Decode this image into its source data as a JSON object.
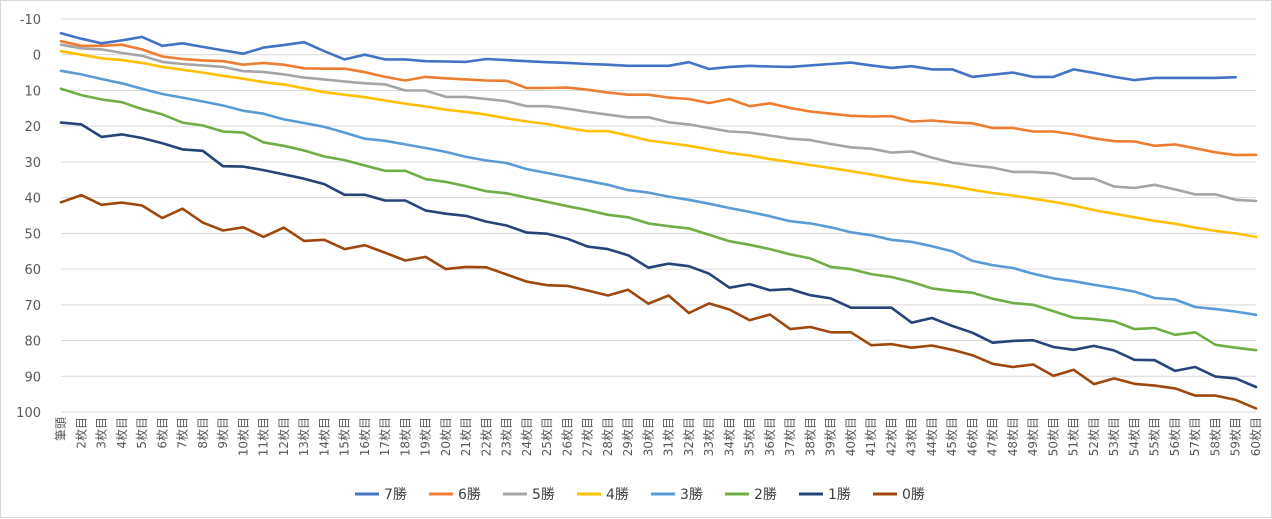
{
  "chart_data": {
    "type": "line",
    "title": "",
    "xlabel": "",
    "ylabel": "",
    "ylim": [
      -10,
      100
    ],
    "y_inverted": true,
    "yticks": [
      "-10",
      "0",
      "10",
      "20",
      "30",
      "40",
      "50",
      "60",
      "70",
      "80",
      "90",
      "100"
    ],
    "grid": "horizontal",
    "legend_position": "bottom",
    "categories": [
      "筆頭",
      "2枚目",
      "3枚目",
      "4枚目",
      "5枚目",
      "6枚目",
      "7枚目",
      "8枚目",
      "9枚目",
      "10枚目",
      "11枚目",
      "12枚目",
      "13枚目",
      "14枚目",
      "15枚目",
      "16枚目",
      "17枚目",
      "18枚目",
      "19枚目",
      "20枚目",
      "21枚目",
      "22枚目",
      "23枚目",
      "24枚目",
      "25枚目",
      "26枚目",
      "27枚目",
      "28枚目",
      "29枚目",
      "30枚目",
      "31枚目",
      "32枚目",
      "33枚目",
      "34枚目",
      "35枚目",
      "36枚目",
      "37枚目",
      "38枚目",
      "39枚目",
      "40枚目",
      "41枚目",
      "42枚目",
      "43枚目",
      "44枚目",
      "45枚目",
      "46枚目",
      "47枚目",
      "48枚目",
      "49枚目",
      "50枚目",
      "51枚目",
      "52枚目",
      "53枚目",
      "54枚目",
      "55枚目",
      "56枚目",
      "57枚目",
      "58枚目",
      "59枚目",
      "60枚目"
    ],
    "x_labels_shown": [
      "筆頭",
      "2枚目",
      "3枚目",
      "4枚目",
      "5枚目",
      "6枚目",
      "7枚目",
      "8枚目",
      "9枚目",
      "10枚目",
      "11枚目",
      "12枚目",
      "13枚目",
      "14枚目",
      "15枚目",
      "16枚目",
      "17枚目",
      "18枚目",
      "19枚目",
      "20枚目",
      "21枚目",
      "22枚目",
      "23枚目",
      "24枚目",
      "25枚目",
      "26枚目",
      "27枚目",
      "28枚目",
      "29枚目",
      "30枚目",
      "31枚目",
      "32枚目",
      "33枚目",
      "34枚目",
      "35枚目",
      "36枚目",
      "37枚目",
      "38枚目",
      "39枚目",
      "40枚目",
      "41枚目",
      "42枚目",
      "43枚目",
      "44枚目",
      "45枚目",
      "46枚目",
      "47枚目",
      "48枚目",
      "49枚目",
      "50枚目",
      "51枚目",
      "52枚目",
      "53枚目",
      "54枚目",
      "55枚目",
      "56枚目",
      "57枚目",
      "58枚目",
      "59枚目",
      "60枚目"
    ],
    "series": [
      {
        "name": "7勝",
        "color": "#4472c4",
        "values": [
          -6,
          -4.5,
          -3.2,
          -4,
          -5,
          -2.5,
          -3.2,
          -2.2,
          -1.2,
          -0.3,
          -2,
          -2.7,
          -3.5,
          -1,
          1.3,
          0,
          1.3,
          1.3,
          1.8,
          1.9,
          2,
          1.2,
          1.5,
          1.8,
          2.1,
          2.3,
          2.6,
          2.8,
          3.1,
          3.1,
          3.1,
          2.1,
          4,
          3.4,
          3.1,
          3.3,
          3.4,
          3,
          2.6,
          2.2,
          3,
          3.7,
          3.2,
          4.1,
          4.1,
          6.2,
          5.6,
          5,
          6.2,
          6.2,
          4.1,
          5.1,
          6.2,
          7.1,
          6.5,
          6.5,
          6.5,
          6.5,
          6.3,
          null
        ]
      },
      {
        "name": "6勝",
        "color": "#ed7d31",
        "values": [
          -3.8,
          -2.5,
          -2.5,
          -2.8,
          -1.5,
          0.5,
          1.2,
          1.6,
          1.8,
          2.8,
          2.3,
          2.8,
          3.8,
          3.9,
          3.9,
          4.9,
          6.2,
          7.2,
          6.2,
          6.6,
          6.9,
          7.2,
          7.3,
          9.3,
          9.3,
          9.2,
          9.8,
          10.6,
          11.2,
          11.2,
          12,
          12.4,
          13.5,
          12.4,
          14.4,
          13.6,
          14.9,
          15.9,
          16.5,
          17.1,
          17.3,
          17.2,
          18.7,
          18.4,
          18.9,
          19.2,
          20.5,
          20.5,
          21.5,
          21.5,
          22.3,
          23.4,
          24.2,
          24.3,
          25.5,
          25.1,
          26.2,
          27.3,
          28.1,
          28
        ]
      },
      {
        "name": "5勝",
        "color": "#a5a5a5",
        "values": [
          -2.8,
          -1.8,
          -1.5,
          -0.5,
          0.3,
          2,
          2.6,
          3,
          3.4,
          4.6,
          4.8,
          5.5,
          6.4,
          6.9,
          7.5,
          8,
          8.3,
          10,
          10,
          11.8,
          11.8,
          12.4,
          13,
          14.4,
          14.4,
          15.1,
          16,
          16.8,
          17.5,
          17.5,
          18.9,
          19.5,
          20.5,
          21.5,
          21.8,
          22.6,
          23.5,
          23.9,
          25,
          25.9,
          26.3,
          27.4,
          27.1,
          28.8,
          30.2,
          31,
          31.6,
          32.8,
          32.8,
          33.2,
          34.7,
          34.7,
          36.9,
          37.3,
          36.4,
          37.7,
          39.1,
          39.1,
          40.6,
          40.9
        ]
      },
      {
        "name": "4勝",
        "color": "#ffc000",
        "values": [
          -1,
          0,
          1,
          1.5,
          2.3,
          3.4,
          4.2,
          5,
          5.9,
          6.7,
          7.7,
          8.3,
          9.4,
          10.5,
          11.2,
          11.9,
          12.8,
          13.7,
          14.5,
          15.4,
          16,
          16.8,
          17.8,
          18.7,
          19.4,
          20.5,
          21.4,
          21.4,
          22.6,
          24,
          24.7,
          25.5,
          26.5,
          27.5,
          28.2,
          29.2,
          30,
          30.9,
          31.7,
          32.6,
          33.5,
          34.5,
          35.4,
          36,
          36.8,
          37.8,
          38.7,
          39.4,
          40.3,
          41.2,
          42.2,
          43.5,
          44.5,
          45.5,
          46.5,
          47.3,
          48.4,
          49.3,
          50,
          51
        ]
      },
      {
        "name": "3勝",
        "color": "#5b9bd5",
        "values": [
          4.5,
          5.5,
          6.8,
          8,
          9.5,
          11,
          12,
          13.1,
          14.2,
          15.7,
          16.5,
          18.1,
          19.1,
          20.2,
          21.8,
          23.5,
          24.1,
          25.1,
          26.1,
          27.2,
          28.6,
          29.6,
          30.3,
          32,
          33.1,
          34.2,
          35.3,
          36.4,
          37.9,
          38.6,
          39.7,
          40.6,
          41.7,
          42.9,
          44,
          45.2,
          46.6,
          47.2,
          48.3,
          49.7,
          50.5,
          51.8,
          52.4,
          53.6,
          55,
          57.7,
          58.9,
          59.7,
          61.3,
          62.6,
          63.4,
          64.4,
          65.3,
          66.3,
          68.1,
          68.5,
          70.6,
          71.2,
          71.9,
          72.8
        ]
      },
      {
        "name": "2勝",
        "color": "#70ad47",
        "values": [
          9.5,
          11.3,
          12.5,
          13.3,
          15.2,
          16.7,
          19,
          19.8,
          21.5,
          21.8,
          24.5,
          25.5,
          26.8,
          28.5,
          29.5,
          31,
          32.5,
          32.5,
          34.8,
          35.6,
          36.8,
          38.2,
          38.8,
          40,
          41.2,
          42.4,
          43.5,
          44.8,
          45.5,
          47.2,
          48,
          48.6,
          50.4,
          52.2,
          53.2,
          54.4,
          55.9,
          57,
          59.4,
          60,
          61.4,
          62.2,
          63.6,
          65.4,
          66.1,
          66.6,
          68.3,
          69.5,
          70,
          71.8,
          73.6,
          74,
          74.6,
          76.8,
          76.5,
          78.4,
          77.7,
          81.2,
          82,
          82.7
        ]
      },
      {
        "name": "1勝",
        "color": "#264478",
        "values": [
          19,
          19.5,
          23,
          22.3,
          23.3,
          24.8,
          26.5,
          26.9,
          31.2,
          31.3,
          32.3,
          33.5,
          34.7,
          36.2,
          39.2,
          39.2,
          40.8,
          40.8,
          43.6,
          44.5,
          45.1,
          46.7,
          47.8,
          49.8,
          50.1,
          51.5,
          53.7,
          54.4,
          56.1,
          59.6,
          58.5,
          59.2,
          61.3,
          65.2,
          64.2,
          65.9,
          65.6,
          67.3,
          68.2,
          70.8,
          70.8,
          70.8,
          75,
          73.7,
          75.9,
          77.8,
          80.6,
          80.1,
          79.9,
          81.8,
          82.6,
          81.5,
          82.8,
          85.4,
          85.5,
          88.5,
          87.4,
          90.1,
          90.6,
          93
        ]
      },
      {
        "name": "0勝",
        "color": "#9e480e",
        "values": [
          41.3,
          39.3,
          42,
          41.4,
          42.2,
          45.7,
          43.1,
          47,
          49.2,
          48.3,
          51,
          48.4,
          52.1,
          51.8,
          54.4,
          53.3,
          55.4,
          57.6,
          56.6,
          60,
          59.4,
          59.5,
          61.5,
          63.5,
          64.5,
          64.7,
          66,
          67.4,
          65.8,
          69.7,
          67.4,
          72.3,
          69.6,
          71.3,
          74.3,
          72.7,
          76.8,
          76.2,
          77.7,
          77.7,
          81.3,
          81,
          82,
          81.4,
          82.6,
          84.1,
          86.5,
          87.4,
          86.7,
          89.9,
          88.2,
          92.2,
          90.6,
          92.1,
          92.6,
          93.4,
          95.4,
          95.4,
          96.6,
          99
        ]
      }
    ]
  }
}
